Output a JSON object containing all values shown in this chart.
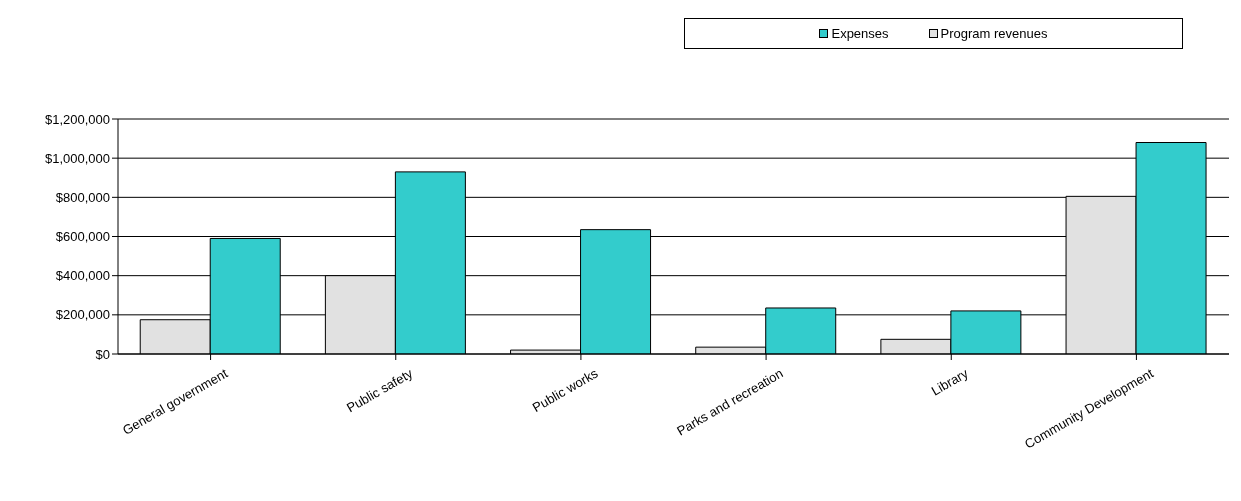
{
  "chart_data": {
    "type": "bar",
    "categories": [
      "General government",
      "Public safety",
      "Public works",
      "Parks and recreation",
      "Library",
      "Community Development"
    ],
    "series": [
      {
        "name": "Program revenues",
        "color": "#e1e1e1",
        "values": [
          175000,
          400000,
          20000,
          35000,
          75000,
          805000
        ]
      },
      {
        "name": "Expenses",
        "color": "#33cccc",
        "values": [
          590000,
          930000,
          635000,
          235000,
          220000,
          1080000
        ]
      }
    ],
    "ylim": [
      0,
      1200000
    ],
    "yticks": [
      {
        "value": 0,
        "label": "$0"
      },
      {
        "value": 200000,
        "label": "$200,000"
      },
      {
        "value": 400000,
        "label": "$400,000"
      },
      {
        "value": 600000,
        "label": "$600,000"
      },
      {
        "value": 800000,
        "label": "$800,000"
      },
      {
        "value": 1000000,
        "label": "$1,000,000"
      },
      {
        "value": 1200000,
        "label": "$1,200,000"
      }
    ],
    "grid": "y",
    "legend": "top right"
  }
}
